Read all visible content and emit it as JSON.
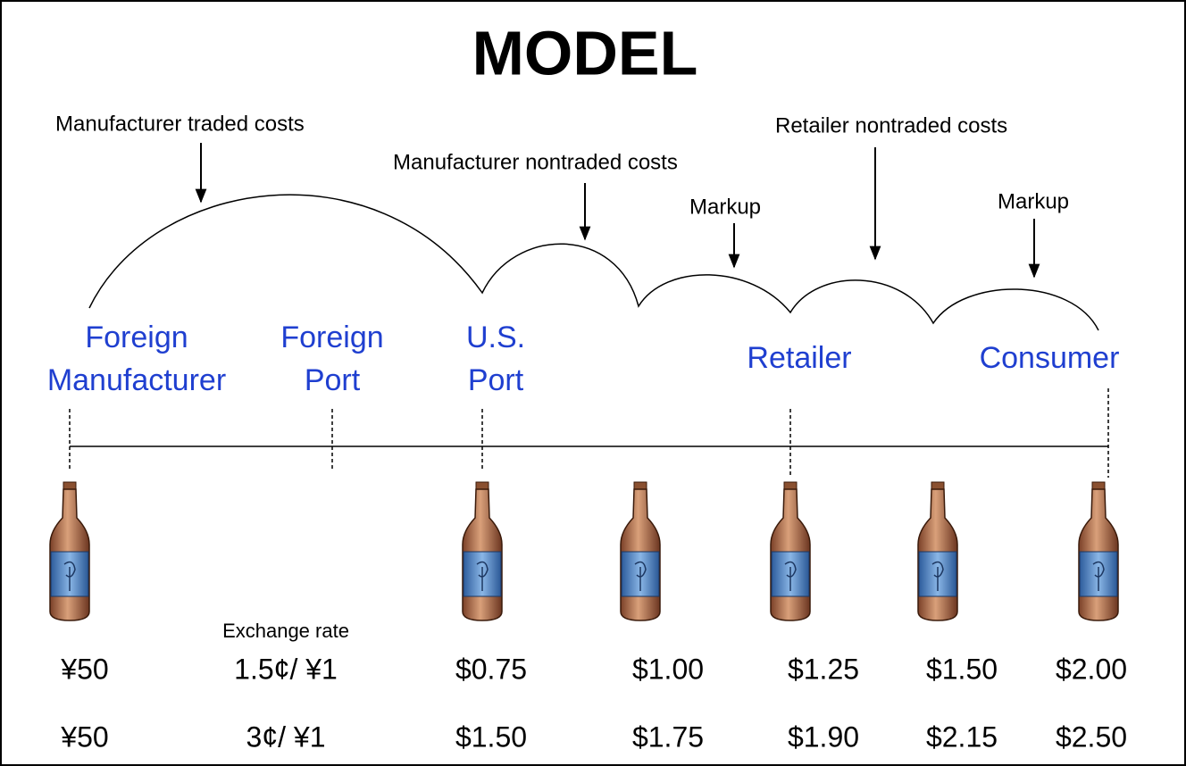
{
  "title": "MODEL",
  "annotations": [
    "Manufacturer traded costs",
    "Manufacturer nontraded costs",
    "Markup",
    "Retailer nontraded costs",
    "Markup"
  ],
  "stages": [
    {
      "lines": [
        "Foreign",
        "Manufacturer"
      ]
    },
    {
      "lines": [
        "Foreign",
        "Port"
      ]
    },
    {
      "lines": [
        "U.S.",
        "Port"
      ]
    },
    {
      "lines": [
        "Retailer"
      ]
    },
    {
      "lines": [
        "Consumer"
      ]
    }
  ],
  "exchange_rate_label": "Exchange rate",
  "price_rows": [
    [
      "¥50",
      "1.5¢/ ¥1",
      "$0.75",
      "$1.00",
      "$1.25",
      "$1.50",
      "$2.00"
    ],
    [
      "¥50",
      "3¢/ ¥1",
      "$1.50",
      "$1.75",
      "$1.90",
      "$2.15",
      "$2.50"
    ]
  ]
}
